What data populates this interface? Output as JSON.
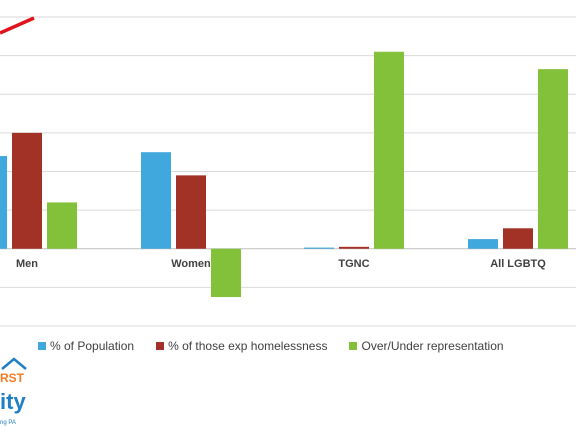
{
  "chart_data": {
    "type": "bar",
    "categories": [
      "Men",
      "Women",
      "TGNC",
      "All LGBTQ"
    ],
    "series": [
      {
        "name": "% of Population",
        "color": "#41a8dd",
        "values": [
          24,
          25,
          0.3,
          2.5
        ]
      },
      {
        "name": "% of those exp homelessness",
        "color": "#a23226",
        "values": [
          30,
          19,
          0.5,
          5.3
        ]
      },
      {
        "name": "Over/Under representation",
        "color": "#84c13a",
        "values": [
          12,
          -12.5,
          51,
          46.5
        ]
      }
    ],
    "ylim": [
      -20,
      60
    ],
    "grid": true,
    "legend_position": "bottom",
    "colors": {
      "grid": "#d9d9d9",
      "axis": "#bfbfbf",
      "red_arrow": "#e0141e",
      "logo_blue": "#1f7fc4",
      "logo_orange": "#f47b20"
    }
  },
  "logo": {
    "text_top": "RST",
    "text_main": "ity",
    "text_small": "ng PA"
  }
}
